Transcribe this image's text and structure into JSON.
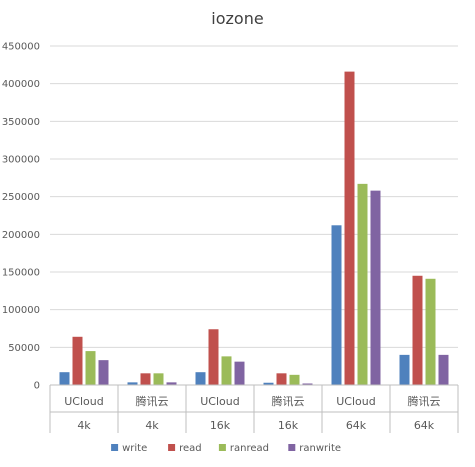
{
  "chart_data": {
    "type": "bar",
    "title": "iozone",
    "categories": [
      [
        "UCloud",
        "4k"
      ],
      [
        "腾讯云",
        "4k"
      ],
      [
        "UCloud",
        "16k"
      ],
      [
        "腾讯云",
        "16k"
      ],
      [
        "UCloud",
        "64k"
      ],
      [
        "腾讯云",
        "64k"
      ]
    ],
    "series": [
      {
        "name": "write",
        "color": "#4f81bd",
        "values": [
          17000,
          3500,
          17000,
          3000,
          212000,
          40000
        ]
      },
      {
        "name": "read",
        "color": "#c0504d",
        "values": [
          64000,
          15500,
          74000,
          15500,
          416000,
          145000
        ]
      },
      {
        "name": "ranread",
        "color": "#9bbb59",
        "values": [
          45000,
          15500,
          38000,
          13500,
          267000,
          141000
        ]
      },
      {
        "name": "ranwrite",
        "color": "#8064a2",
        "values": [
          33000,
          3500,
          31000,
          2000,
          258000,
          40000
        ]
      }
    ],
    "ylim": [
      0,
      450000
    ],
    "yticks": [
      "0",
      "50000",
      "100000",
      "150000",
      "200000",
      "250000",
      "300000",
      "350000",
      "400000",
      "450000"
    ],
    "grid": true,
    "legend_position": "bottom"
  }
}
